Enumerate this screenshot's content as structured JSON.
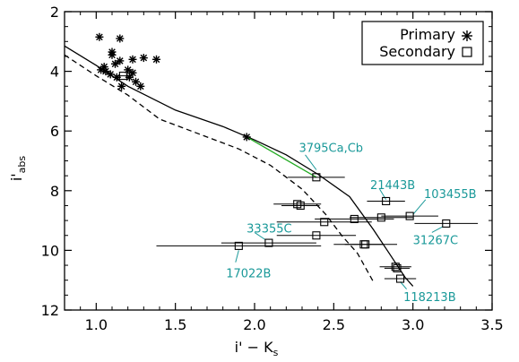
{
  "chart_data": {
    "type": "scatter",
    "title": "",
    "xlabel": "i' − K",
    "xlabel_sub": "s",
    "ylabel": "i'",
    "ylabel_sub": "abs",
    "xlim": [
      0.8,
      3.5
    ],
    "ylim": [
      12,
      2
    ],
    "y_inverted": true,
    "x_ticks": [
      "1.0",
      "1.5",
      "2.0",
      "2.5",
      "3.0",
      "3.5"
    ],
    "y_ticks": [
      "2",
      "4",
      "6",
      "8",
      "10",
      "12"
    ],
    "x_tick_values": [
      1.0,
      1.5,
      2.0,
      2.5,
      3.0,
      3.5
    ],
    "y_tick_values": [
      2,
      4,
      6,
      8,
      10,
      12
    ],
    "legend": {
      "position": "top-right",
      "entries": [
        "Primary",
        "Secondary"
      ]
    },
    "colors": {
      "axes": "#000000",
      "annotation": "#1a9999",
      "connector": "#22aa22"
    },
    "series": [
      {
        "name": "Primary",
        "marker": "asterisk",
        "points": [
          [
            1.02,
            2.85
          ],
          [
            1.15,
            2.9
          ],
          [
            1.05,
            3.85
          ],
          [
            1.06,
            4.0
          ],
          [
            1.03,
            3.95
          ],
          [
            1.1,
            3.35
          ],
          [
            1.1,
            3.45
          ],
          [
            1.12,
            3.75
          ],
          [
            1.15,
            3.65
          ],
          [
            1.2,
            3.95
          ],
          [
            1.23,
            3.6
          ],
          [
            1.23,
            4.05
          ],
          [
            1.21,
            4.2
          ],
          [
            1.25,
            4.35
          ],
          [
            1.3,
            3.55
          ],
          [
            1.38,
            3.6
          ],
          [
            1.28,
            4.5
          ],
          [
            1.16,
            4.5
          ],
          [
            1.13,
            4.2
          ],
          [
            1.09,
            4.1
          ],
          [
            1.95,
            6.2
          ]
        ]
      },
      {
        "name": "Secondary",
        "marker": "square",
        "points": [
          {
            "x": 1.17,
            "y": 4.15,
            "xerr": 0.05
          },
          {
            "x": 2.39,
            "y": 7.55,
            "xerr": 0.18
          },
          {
            "x": 2.27,
            "y": 8.45,
            "xerr": 0.15
          },
          {
            "x": 2.29,
            "y": 8.5,
            "xerr": 0.12
          },
          {
            "x": 2.83,
            "y": 8.35,
            "xerr": 0.12
          },
          {
            "x": 2.98,
            "y": 8.85,
            "xerr": 0.18
          },
          {
            "x": 2.8,
            "y": 8.9,
            "xerr": 0.2
          },
          {
            "x": 2.63,
            "y": 8.95,
            "xerr": 0.25
          },
          {
            "x": 2.44,
            "y": 9.05,
            "xerr": 0.3
          },
          {
            "x": 3.21,
            "y": 9.1,
            "xerr": 0.2
          },
          {
            "x": 2.39,
            "y": 9.5,
            "xerr": 0.25
          },
          {
            "x": 2.09,
            "y": 9.75,
            "xerr": 0.3
          },
          {
            "x": 1.9,
            "y": 9.85,
            "xerr": 0.52
          },
          {
            "x": 2.7,
            "y": 9.8,
            "xerr": 0.2
          },
          {
            "x": 2.69,
            "y": 9.8,
            "xerr": 0.12
          },
          {
            "x": 2.89,
            "y": 10.55,
            "xerr": 0.1
          },
          {
            "x": 2.9,
            "y": 10.6,
            "xerr": 0.08
          },
          {
            "x": 2.92,
            "y": 10.95,
            "xerr": 0.1
          }
        ]
      },
      {
        "name": "solid model",
        "style": "solid",
        "points": [
          [
            0.8,
            3.15
          ],
          [
            1.0,
            3.8
          ],
          [
            1.2,
            4.5
          ],
          [
            1.5,
            5.3
          ],
          [
            1.8,
            5.85
          ],
          [
            2.0,
            6.3
          ],
          [
            2.2,
            6.8
          ],
          [
            2.4,
            7.45
          ],
          [
            2.6,
            8.2
          ],
          [
            2.75,
            9.3
          ],
          [
            2.85,
            10.1
          ],
          [
            2.95,
            10.9
          ],
          [
            3.0,
            11.2
          ]
        ]
      },
      {
        "name": "dashed model",
        "style": "dashed",
        "points": [
          [
            0.8,
            3.45
          ],
          [
            1.0,
            4.15
          ],
          [
            1.2,
            4.8
          ],
          [
            1.4,
            5.6
          ],
          [
            1.6,
            6.0
          ],
          [
            1.9,
            6.6
          ],
          [
            2.1,
            7.15
          ],
          [
            2.3,
            7.95
          ],
          [
            2.45,
            8.8
          ],
          [
            2.55,
            9.5
          ],
          [
            2.65,
            10.1
          ],
          [
            2.75,
            11.05
          ]
        ]
      }
    ],
    "connector": {
      "from": [
        1.95,
        6.2
      ],
      "to": [
        2.39,
        7.55
      ]
    },
    "annotations": [
      {
        "text": "3795Ca,Cb",
        "x": 2.28,
        "y": 6.55,
        "anchor": "start",
        "leader": [
          [
            2.32,
            6.8
          ],
          [
            2.39,
            7.3
          ]
        ]
      },
      {
        "text": "21443B",
        "x": 2.73,
        "y": 7.8,
        "anchor": "start",
        "leader": [
          [
            2.79,
            7.95
          ],
          [
            2.83,
            8.3
          ]
        ]
      },
      {
        "text": "103455B",
        "x": 3.07,
        "y": 8.1,
        "anchor": "start",
        "leader": [
          [
            3.08,
            8.3
          ],
          [
            3.0,
            8.8
          ]
        ]
      },
      {
        "text": "31267C",
        "x": 3.0,
        "y": 9.65,
        "anchor": "start",
        "leader": [
          [
            3.12,
            9.4
          ],
          [
            3.19,
            9.2
          ]
        ]
      },
      {
        "text": "33355C",
        "x": 1.95,
        "y": 9.25,
        "anchor": "start",
        "leader": [
          [
            2.0,
            9.4
          ],
          [
            2.07,
            9.65
          ]
        ]
      },
      {
        "text": "17022B",
        "x": 1.82,
        "y": 10.75,
        "anchor": "start",
        "leader": [
          [
            1.88,
            10.4
          ],
          [
            1.9,
            10.0
          ]
        ]
      },
      {
        "text": "118213B",
        "x": 2.94,
        "y": 11.55,
        "anchor": "start",
        "leader": [
          [
            2.96,
            11.3
          ],
          [
            2.92,
            11.05
          ]
        ]
      }
    ]
  }
}
